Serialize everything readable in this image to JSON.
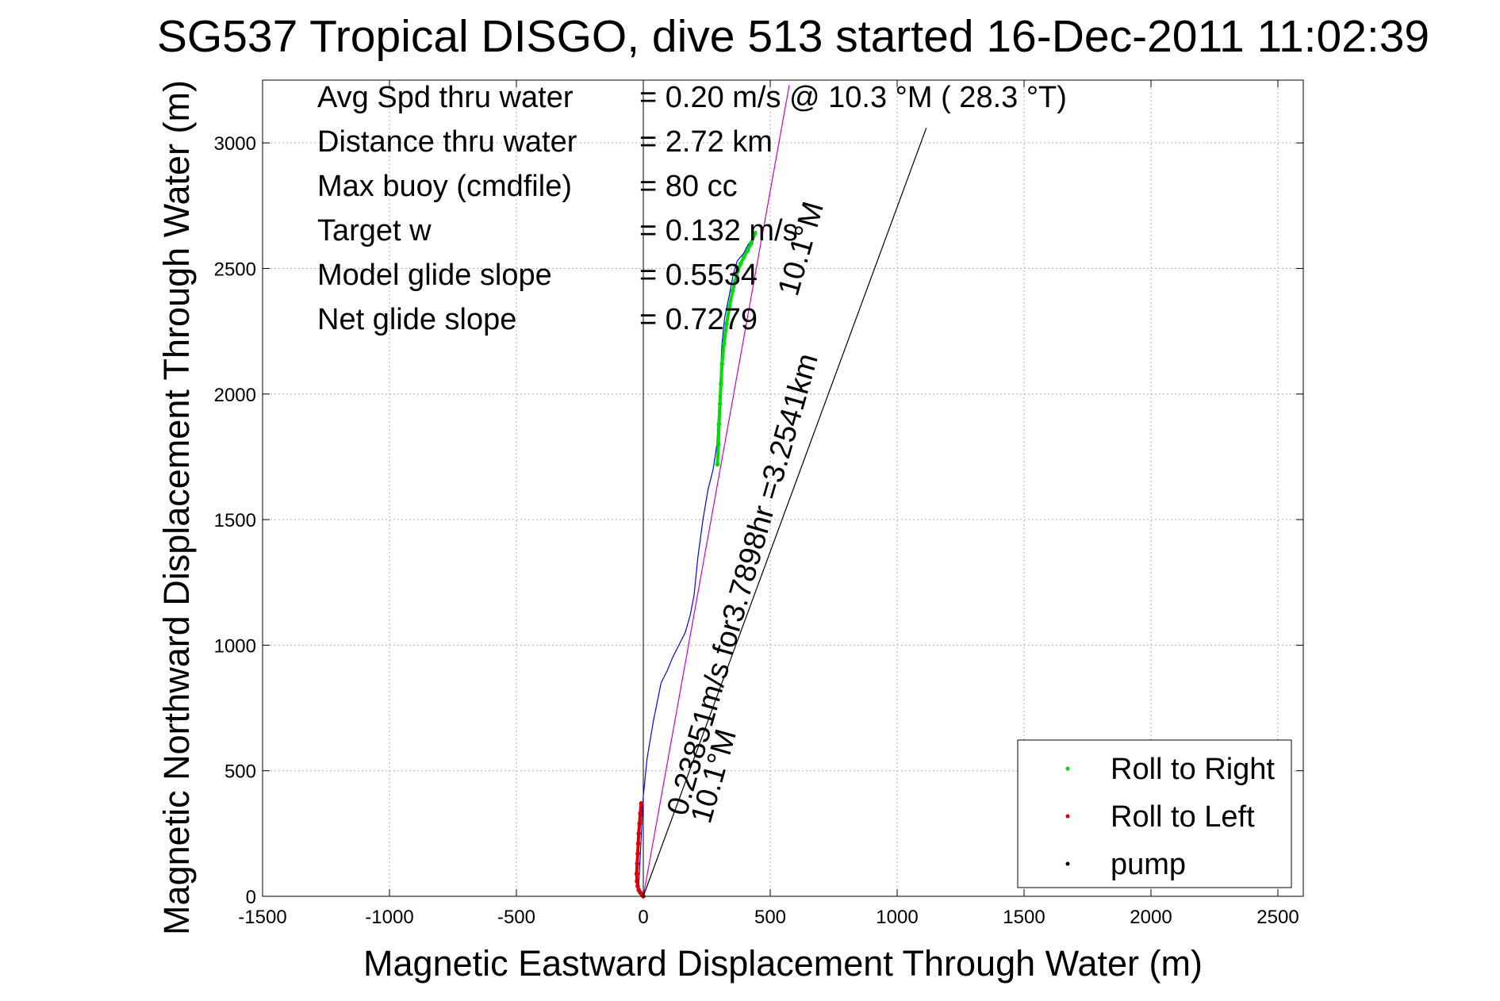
{
  "chart_data": {
    "type": "line",
    "title": "SG537 Tropical DISGO, dive 513 started 16-Dec-2011 11:02:39",
    "xlabel": "Magnetic Eastward Displacement Through Water (m)",
    "ylabel": "Magnetic Northward Displacement Through Water (m)",
    "xlim": [
      -1500,
      2600
    ],
    "ylim": [
      0,
      3250
    ],
    "xticks": [
      -1500,
      -1000,
      -500,
      0,
      500,
      1000,
      1500,
      2000,
      2500
    ],
    "yticks": [
      0,
      500,
      1000,
      1500,
      2000,
      2500,
      3000
    ],
    "xtick_labels": [
      "-1500",
      "-1000",
      "-500",
      "0",
      "500",
      "1000",
      "1500",
      "2000",
      "2500"
    ],
    "ytick_labels": [
      "0",
      "500",
      "1000",
      "1500",
      "2000",
      "2500",
      "3000"
    ],
    "grid": true,
    "legend_position": "bottom-right",
    "legend": [
      {
        "label": "Roll to Right",
        "color": "#00dd00"
      },
      {
        "label": "Roll to Left",
        "color": "#dd0000"
      },
      {
        "label": "pump",
        "color": "#000000"
      }
    ],
    "stats": [
      {
        "label": "Avg Spd thru water",
        "value": "=  0.20 m/s @  10.3 °M ( 28.3 °T)"
      },
      {
        "label": "Distance thru water",
        "value": "=  2.72 km"
      },
      {
        "label": "Max buoy (cmdfile)",
        "value": "= 80 cc"
      },
      {
        "label": "Target w",
        "value": "= 0.132 m/s"
      },
      {
        "label": "Model glide slope",
        "value": "= 0.5534"
      },
      {
        "label": "Net glide slope",
        "value": "= 0.7279"
      }
    ],
    "annotations": [
      {
        "text": "0.23851m/s for3.7898hr =3.2541km",
        "rotation": -74
      },
      {
        "text": "10.1°M",
        "rotation": -74
      },
      {
        "text": "10.1°M",
        "rotation": -74
      }
    ],
    "series": [
      {
        "style": "track",
        "color": "#0000ff",
        "x": [
          0,
          -10,
          -18,
          -15,
          -10,
          -5,
          0,
          15,
          40,
          70,
          95,
          115,
          140,
          165,
          185,
          200,
          215,
          235,
          255,
          275,
          290,
          295,
          300,
          305,
          310,
          320,
          340,
          355,
          370,
          395,
          410,
          430,
          445
        ],
        "y": [
          0,
          10,
          40,
          100,
          200,
          300,
          400,
          550,
          700,
          850,
          900,
          950,
          1000,
          1050,
          1120,
          1200,
          1350,
          1500,
          1620,
          1700,
          1800,
          1900,
          2000,
          2100,
          2200,
          2300,
          2400,
          2480,
          2530,
          2560,
          2590,
          2620,
          2650
        ]
      },
      {
        "style": "roll-right",
        "color": "#00dd00",
        "x": [
          292,
          296,
          298,
          302,
          306,
          310,
          318,
          328,
          340,
          352,
          362,
          372,
          384,
          396,
          410,
          425,
          440
        ],
        "y": [
          1720,
          1800,
          1880,
          1960,
          2040,
          2120,
          2200,
          2280,
          2350,
          2410,
          2450,
          2490,
          2520,
          2545,
          2570,
          2600,
          2640
        ]
      },
      {
        "style": "roll-left",
        "color": "#dd0000",
        "x": [
          -8,
          -12,
          -15,
          -18,
          -20,
          -22,
          -24,
          -26,
          -25,
          -22,
          -18,
          -12,
          -5,
          0
        ],
        "y": [
          370,
          330,
          290,
          250,
          210,
          170,
          130,
          90,
          60,
          40,
          25,
          15,
          6,
          0
        ]
      },
      {
        "style": "heading-line",
        "color": "#cc00cc",
        "x": [
          0,
          575
        ],
        "y": [
          0,
          3230
        ]
      },
      {
        "style": "current-line",
        "color": "#000000",
        "x": [
          0,
          1115
        ],
        "y": [
          0,
          3060
        ]
      }
    ],
    "pump_x": [
      0
    ],
    "pump_y": [
      3250
    ]
  }
}
